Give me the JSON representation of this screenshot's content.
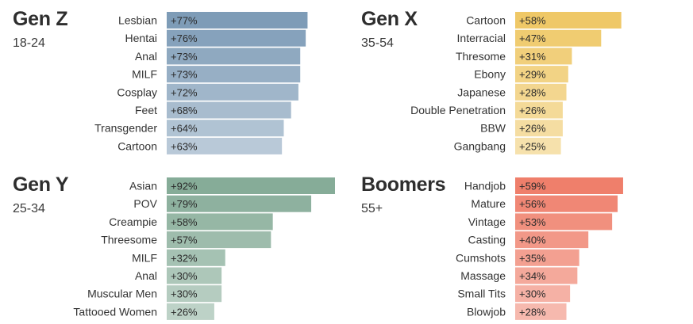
{
  "chart_data": [
    {
      "type": "bar",
      "orientation": "horizontal",
      "title": "Gen Z",
      "subtitle": "18-24",
      "categories": [
        "Lesbian",
        "Hentai",
        "Anal",
        "MILF",
        "Cosplay",
        "Feet",
        "Transgender",
        "Cartoon"
      ],
      "values": [
        77,
        76,
        73,
        73,
        72,
        68,
        64,
        63
      ],
      "value_labels": [
        "+77%",
        "+76%",
        "+73%",
        "+73%",
        "+72%",
        "+68%",
        "+64%",
        "+63%"
      ],
      "color": "#7e9cb7"
    },
    {
      "type": "bar",
      "orientation": "horizontal",
      "title": "Gen X",
      "subtitle": "35-54",
      "categories": [
        "Cartoon",
        "Interracial",
        "Thresome",
        "Ebony",
        "Japanese",
        "Double Penetration",
        "BBW",
        "Gangbang"
      ],
      "values": [
        58,
        47,
        31,
        29,
        28,
        26,
        26,
        25
      ],
      "value_labels": [
        "+58%",
        "+47%",
        "+31%",
        "+29%",
        "+28%",
        "+26%",
        "+26%",
        "+25%"
      ],
      "color": "#efc867"
    },
    {
      "type": "bar",
      "orientation": "horizontal",
      "title": "Gen Y",
      "subtitle": "25-34",
      "categories": [
        "Asian",
        "POV",
        "Creampie",
        "Threesome",
        "MILF",
        "Anal",
        "Muscular Men",
        "Tattooed Women"
      ],
      "values": [
        92,
        79,
        58,
        57,
        32,
        30,
        30,
        26
      ],
      "value_labels": [
        "+92%",
        "+79%",
        "+58%",
        "+57%",
        "+32%",
        "+30%",
        "+30%",
        "+26%"
      ],
      "color": "#86ac98"
    },
    {
      "type": "bar",
      "orientation": "horizontal",
      "title": "Boomers",
      "subtitle": "55+",
      "categories": [
        "Handjob",
        "Mature",
        "Vintage",
        "Casting",
        "Cumshots",
        "Massage",
        "Small Tits",
        "Blowjob"
      ],
      "values": [
        59,
        56,
        53,
        40,
        35,
        34,
        30,
        28
      ],
      "value_labels": [
        "+59%",
        "+56%",
        "+53%",
        "+40%",
        "+35%",
        "+34%",
        "+30%",
        "+28%"
      ],
      "color": "#ef7f6b"
    }
  ]
}
